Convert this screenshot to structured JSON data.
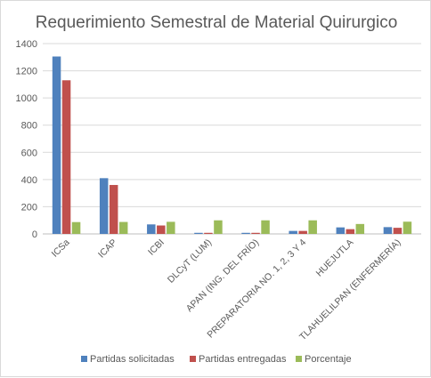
{
  "chart_data": {
    "type": "bar",
    "title": "Requerimiento Semestral de Material Quirurgico",
    "categories": [
      "ICSa",
      "ICAP",
      "ICBI",
      "DLCyT (LUM)",
      "APAN (ING. DEL FRÍO)",
      "PREPARATORIA NO. 1, 2, 3 Y 4",
      "HUEJUTLA",
      "TLAHUELILPAN (ENFERMERÍA)"
    ],
    "series": [
      {
        "name": "Partidas solicitadas",
        "color": "#4f81bd",
        "values": [
          1305,
          410,
          70,
          8,
          8,
          22,
          48,
          50
        ]
      },
      {
        "name": "Partidas entregadas",
        "color": "#c0504d",
        "values": [
          1130,
          360,
          62,
          8,
          8,
          22,
          35,
          45
        ]
      },
      {
        "name": "Porcentaje",
        "color": "#9bbb59",
        "values": [
          87,
          88,
          89,
          100,
          100,
          100,
          73,
          90
        ]
      }
    ],
    "ylim": [
      0,
      1400
    ],
    "yticks": [
      0,
      200,
      400,
      600,
      800,
      1000,
      1200,
      1400
    ],
    "grid": true,
    "legend_position": "bottom"
  }
}
